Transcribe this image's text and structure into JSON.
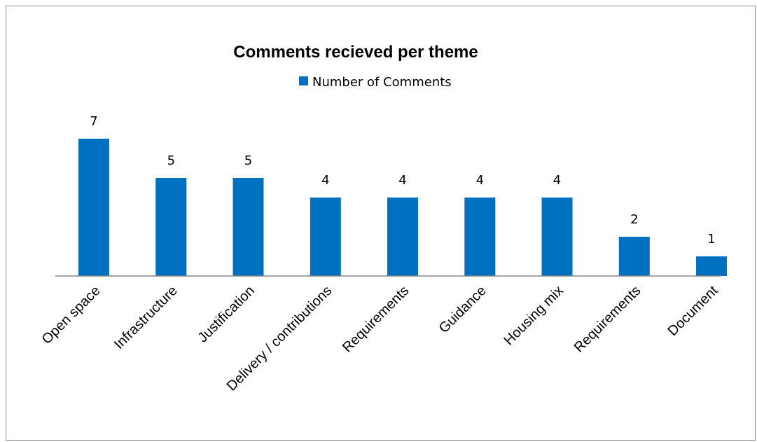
{
  "chart_data": {
    "type": "bar",
    "title": "Comments recieved per theme",
    "categories": [
      "Open space",
      "Infrastructure",
      "Justification",
      "Delivery / contributions",
      "Requirements",
      "Guidance",
      "Housing mix",
      "Requirements",
      "Document"
    ],
    "series": [
      {
        "name": "Number of Comments",
        "values": [
          7,
          5,
          5,
          4,
          4,
          4,
          4,
          2,
          1
        ],
        "color": "#0070C0"
      }
    ],
    "xlabel": "",
    "ylabel": "",
    "ylim": [
      0,
      7
    ],
    "legend_position": "top",
    "grid": false,
    "data_labels": true
  }
}
